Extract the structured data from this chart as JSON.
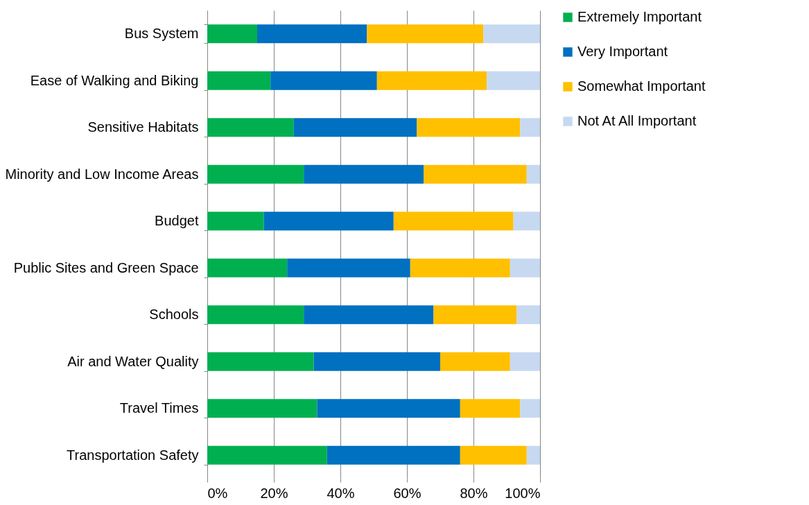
{
  "chart_data": {
    "type": "bar",
    "orientation": "horizontal",
    "stacked": true,
    "categories": [
      "Bus System",
      "Ease of Walking and Biking",
      "Sensitive Habitats",
      "Minority and Low Income Areas",
      "Budget",
      "Public Sites and Green Space",
      "Schools",
      "Air and Water Quality",
      "Travel Times",
      "Transportation Safety"
    ],
    "series": [
      {
        "name": "Extremely Important",
        "color": "#00b050",
        "values": [
          15,
          19,
          26,
          29,
          17,
          24,
          29,
          32,
          33,
          36
        ]
      },
      {
        "name": "Very Important",
        "color": "#0070c0",
        "values": [
          33,
          32,
          37,
          36,
          39,
          37,
          39,
          38,
          43,
          40
        ]
      },
      {
        "name": "Somewhat Important",
        "color": "#ffc000",
        "values": [
          35,
          33,
          31,
          31,
          36,
          30,
          25,
          21,
          18,
          20
        ]
      },
      {
        "name": "Not At All Important",
        "color": "#c6d9f1",
        "values": [
          17,
          16,
          6,
          4,
          8,
          9,
          7,
          9,
          6,
          4
        ]
      }
    ],
    "xlim": [
      0,
      100
    ],
    "xticks": [
      {
        "value": 0,
        "label": "0%"
      },
      {
        "value": 20,
        "label": "20%"
      },
      {
        "value": 40,
        "label": "40%"
      },
      {
        "value": 60,
        "label": "60%"
      },
      {
        "value": 80,
        "label": "80%"
      },
      {
        "value": 100,
        "label": "100%"
      }
    ],
    "grid": "x",
    "legend": "right"
  }
}
